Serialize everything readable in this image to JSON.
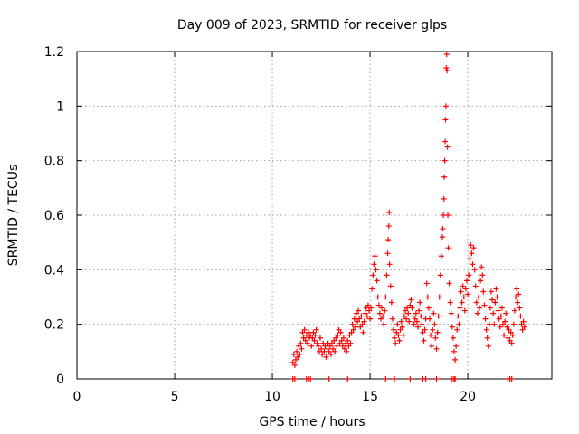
{
  "chart_data": {
    "type": "scatter",
    "title": "Day 009 of 2023, SRMTID for receiver glps",
    "xlabel": "GPS time / hours",
    "ylabel": "SRMTID / TECUs",
    "xlim": [
      0,
      24.3
    ],
    "ylim": [
      0,
      1.2
    ],
    "x_ticks": [
      0,
      5,
      10,
      15,
      20
    ],
    "x_tick_labels": [
      "0",
      "5",
      "10",
      "15",
      "20"
    ],
    "y_ticks": [
      0,
      0.2,
      0.4,
      0.6,
      0.8,
      1.0,
      1.2
    ],
    "y_tick_labels": [
      "0",
      "0.2",
      "0.4",
      "0.6",
      "0.8",
      "1",
      "1.2"
    ],
    "grid": true,
    "marker": "+",
    "color": "#ff0000",
    "series": [
      {
        "name": "SRMTID",
        "points": [
          [
            11.05,
            0.06
          ],
          [
            11.1,
            0.09
          ],
          [
            11.15,
            0.05
          ],
          [
            11.2,
            0.07
          ],
          [
            11.25,
            0.1
          ],
          [
            11.3,
            0.08
          ],
          [
            11.35,
            0.12
          ],
          [
            11.4,
            0.09
          ],
          [
            11.45,
            0.13
          ],
          [
            11.5,
            0.11
          ],
          [
            11.55,
            0.17
          ],
          [
            11.6,
            0.15
          ],
          [
            11.65,
            0.18
          ],
          [
            11.7,
            0.14
          ],
          [
            11.75,
            0.16
          ],
          [
            11.8,
            0.13
          ],
          [
            11.85,
            0.17
          ],
          [
            11.9,
            0.15
          ],
          [
            11.95,
            0.16
          ],
          [
            12.0,
            0.12
          ],
          [
            12.05,
            0.15
          ],
          [
            12.1,
            0.17
          ],
          [
            12.15,
            0.14
          ],
          [
            12.2,
            0.16
          ],
          [
            12.25,
            0.18
          ],
          [
            12.3,
            0.13
          ],
          [
            12.35,
            0.12
          ],
          [
            12.4,
            0.1
          ],
          [
            12.45,
            0.15
          ],
          [
            12.5,
            0.11
          ],
          [
            12.55,
            0.09
          ],
          [
            12.6,
            0.13
          ],
          [
            12.65,
            0.1
          ],
          [
            12.7,
            0.12
          ],
          [
            12.75,
            0.08
          ],
          [
            12.8,
            0.11
          ],
          [
            12.85,
            0.13
          ],
          [
            12.9,
            0.1
          ],
          [
            12.95,
            0.12
          ],
          [
            13.0,
            0.09
          ],
          [
            13.05,
            0.13
          ],
          [
            13.1,
            0.11
          ],
          [
            13.15,
            0.14
          ],
          [
            13.2,
            0.1
          ],
          [
            13.25,
            0.15
          ],
          [
            13.3,
            0.12
          ],
          [
            13.35,
            0.16
          ],
          [
            13.4,
            0.18
          ],
          [
            13.45,
            0.13
          ],
          [
            13.5,
            0.17
          ],
          [
            13.55,
            0.14
          ],
          [
            13.6,
            0.12
          ],
          [
            13.65,
            0.15
          ],
          [
            13.7,
            0.11
          ],
          [
            13.75,
            0.13
          ],
          [
            13.8,
            0.1
          ],
          [
            13.85,
            0.14
          ],
          [
            13.9,
            0.12
          ],
          [
            13.95,
            0.16
          ],
          [
            14.0,
            0.13
          ],
          [
            14.05,
            0.17
          ],
          [
            14.1,
            0.2
          ],
          [
            14.15,
            0.18
          ],
          [
            14.2,
            0.22
          ],
          [
            14.25,
            0.19
          ],
          [
            14.3,
            0.24
          ],
          [
            14.35,
            0.21
          ],
          [
            14.4,
            0.25
          ],
          [
            14.45,
            0.22
          ],
          [
            14.5,
            0.19
          ],
          [
            14.55,
            0.23
          ],
          [
            14.6,
            0.2
          ],
          [
            14.65,
            0.17
          ],
          [
            14.7,
            0.21
          ],
          [
            14.75,
            0.24
          ],
          [
            14.8,
            0.26
          ],
          [
            14.85,
            0.23
          ],
          [
            14.9,
            0.27
          ],
          [
            14.95,
            0.25
          ],
          [
            15.0,
            0.22
          ],
          [
            15.05,
            0.26
          ],
          [
            15.1,
            0.33
          ],
          [
            15.15,
            0.38
          ],
          [
            15.2,
            0.42
          ],
          [
            15.25,
            0.45
          ],
          [
            15.3,
            0.4
          ],
          [
            15.35,
            0.36
          ],
          [
            15.4,
            0.3
          ],
          [
            15.45,
            0.27
          ],
          [
            15.5,
            0.24
          ],
          [
            15.55,
            0.22
          ],
          [
            15.6,
            0.26
          ],
          [
            15.65,
            0.23
          ],
          [
            15.7,
            0.2
          ],
          [
            15.75,
            0.25
          ],
          [
            15.8,
            0.3
          ],
          [
            15.85,
            0.38
          ],
          [
            15.9,
            0.46
          ],
          [
            15.93,
            0.51
          ],
          [
            15.96,
            0.56
          ],
          [
            15.98,
            0.61
          ],
          [
            16.0,
            0.42
          ],
          [
            16.05,
            0.34
          ],
          [
            16.1,
            0.28
          ],
          [
            16.15,
            0.22
          ],
          [
            16.2,
            0.18
          ],
          [
            16.25,
            0.15
          ],
          [
            16.3,
            0.13
          ],
          [
            16.35,
            0.17
          ],
          [
            16.4,
            0.2
          ],
          [
            16.45,
            0.16
          ],
          [
            16.5,
            0.14
          ],
          [
            16.55,
            0.18
          ],
          [
            16.6,
            0.21
          ],
          [
            16.65,
            0.19
          ],
          [
            16.7,
            0.16
          ],
          [
            16.75,
            0.23
          ],
          [
            16.8,
            0.25
          ],
          [
            16.85,
            0.22
          ],
          [
            16.9,
            0.26
          ],
          [
            16.95,
            0.24
          ],
          [
            17.0,
            0.21
          ],
          [
            17.05,
            0.27
          ],
          [
            17.1,
            0.29
          ],
          [
            17.15,
            0.26
          ],
          [
            17.2,
            0.23
          ],
          [
            17.25,
            0.2
          ],
          [
            17.3,
            0.22
          ],
          [
            17.35,
            0.24
          ],
          [
            17.4,
            0.21
          ],
          [
            17.45,
            0.19
          ],
          [
            17.5,
            0.25
          ],
          [
            17.55,
            0.28
          ],
          [
            17.6,
            0.23
          ],
          [
            17.65,
            0.2
          ],
          [
            17.7,
            0.17
          ],
          [
            17.75,
            0.14
          ],
          [
            17.8,
            0.18
          ],
          [
            17.85,
            0.22
          ],
          [
            17.9,
            0.35
          ],
          [
            17.95,
            0.3
          ],
          [
            18.0,
            0.26
          ],
          [
            18.05,
            0.22
          ],
          [
            18.1,
            0.16
          ],
          [
            18.15,
            0.12
          ],
          [
            18.2,
            0.18
          ],
          [
            18.25,
            0.24
          ],
          [
            18.3,
            0.2
          ],
          [
            18.35,
            0.15
          ],
          [
            18.4,
            0.11
          ],
          [
            18.45,
            0.17
          ],
          [
            18.5,
            0.23
          ],
          [
            18.55,
            0.3
          ],
          [
            18.6,
            0.38
          ],
          [
            18.65,
            0.45
          ],
          [
            18.7,
            0.52
          ],
          [
            18.72,
            0.55
          ],
          [
            18.75,
            0.6
          ],
          [
            18.78,
            0.66
          ],
          [
            18.8,
            0.74
          ],
          [
            18.82,
            0.8
          ],
          [
            18.84,
            0.87
          ],
          [
            18.86,
            0.95
          ],
          [
            18.88,
            1.0
          ],
          [
            18.9,
            1.14
          ],
          [
            18.92,
            1.19
          ],
          [
            18.94,
            1.13
          ],
          [
            18.96,
            0.85
          ],
          [
            18.98,
            0.6
          ],
          [
            19.0,
            0.48
          ],
          [
            19.05,
            0.35
          ],
          [
            19.1,
            0.28
          ],
          [
            19.15,
            0.24
          ],
          [
            19.2,
            0.19
          ],
          [
            19.25,
            0.15
          ],
          [
            19.3,
            0.1
          ],
          [
            19.35,
            0.07
          ],
          [
            19.4,
            0.12
          ],
          [
            19.45,
            0.18
          ],
          [
            19.5,
            0.23
          ],
          [
            19.55,
            0.2
          ],
          [
            19.6,
            0.26
          ],
          [
            19.65,
            0.32
          ],
          [
            19.7,
            0.28
          ],
          [
            19.75,
            0.34
          ],
          [
            19.8,
            0.3
          ],
          [
            19.85,
            0.25
          ],
          [
            19.9,
            0.33
          ],
          [
            19.95,
            0.36
          ],
          [
            20.0,
            0.31
          ],
          [
            20.05,
            0.38
          ],
          [
            20.1,
            0.44
          ],
          [
            20.15,
            0.49
          ],
          [
            20.2,
            0.46
          ],
          [
            20.25,
            0.42
          ],
          [
            20.3,
            0.48
          ],
          [
            20.35,
            0.4
          ],
          [
            20.4,
            0.34
          ],
          [
            20.45,
            0.28
          ],
          [
            20.5,
            0.24
          ],
          [
            20.55,
            0.3
          ],
          [
            20.6,
            0.26
          ],
          [
            20.65,
            0.36
          ],
          [
            20.7,
            0.41
          ],
          [
            20.75,
            0.38
          ],
          [
            20.8,
            0.32
          ],
          [
            20.85,
            0.27
          ],
          [
            20.9,
            0.22
          ],
          [
            20.95,
            0.18
          ],
          [
            21.0,
            0.15
          ],
          [
            21.05,
            0.12
          ],
          [
            21.1,
            0.2
          ],
          [
            21.15,
            0.26
          ],
          [
            21.2,
            0.32
          ],
          [
            21.25,
            0.29
          ],
          [
            21.3,
            0.24
          ],
          [
            21.35,
            0.2
          ],
          [
            21.4,
            0.28
          ],
          [
            21.45,
            0.33
          ],
          [
            21.5,
            0.3
          ],
          [
            21.55,
            0.25
          ],
          [
            21.6,
            0.22
          ],
          [
            21.65,
            0.19
          ],
          [
            21.7,
            0.23
          ],
          [
            21.75,
            0.26
          ],
          [
            21.8,
            0.2
          ],
          [
            21.85,
            0.16
          ],
          [
            21.9,
            0.21
          ],
          [
            21.95,
            0.24
          ],
          [
            22.0,
            0.19
          ],
          [
            22.05,
            0.15
          ],
          [
            22.1,
            0.18
          ],
          [
            22.15,
            0.14
          ],
          [
            22.2,
            0.17
          ],
          [
            22.25,
            0.13
          ],
          [
            22.3,
            0.16
          ],
          [
            22.35,
            0.2
          ],
          [
            22.4,
            0.25
          ],
          [
            22.45,
            0.3
          ],
          [
            22.5,
            0.33
          ],
          [
            22.55,
            0.28
          ],
          [
            22.6,
            0.31
          ],
          [
            22.65,
            0.26
          ],
          [
            22.7,
            0.23
          ],
          [
            22.75,
            0.2
          ],
          [
            22.8,
            0.18
          ],
          [
            22.85,
            0.21
          ],
          [
            22.9,
            0.19
          ],
          [
            11.05,
            0.0
          ],
          [
            11.15,
            0.0
          ],
          [
            11.75,
            0.0
          ],
          [
            11.85,
            0.0
          ],
          [
            11.95,
            0.0
          ],
          [
            12.9,
            0.0
          ],
          [
            13.85,
            0.0
          ],
          [
            15.8,
            0.0
          ],
          [
            16.25,
            0.0
          ],
          [
            17.05,
            0.0
          ],
          [
            17.7,
            0.0
          ],
          [
            17.85,
            0.0
          ],
          [
            18.4,
            0.0
          ],
          [
            19.2,
            0.0
          ],
          [
            19.3,
            0.0
          ],
          [
            19.35,
            0.0
          ],
          [
            22.05,
            0.0
          ],
          [
            22.15,
            0.0
          ],
          [
            22.25,
            0.0
          ]
        ]
      }
    ]
  }
}
